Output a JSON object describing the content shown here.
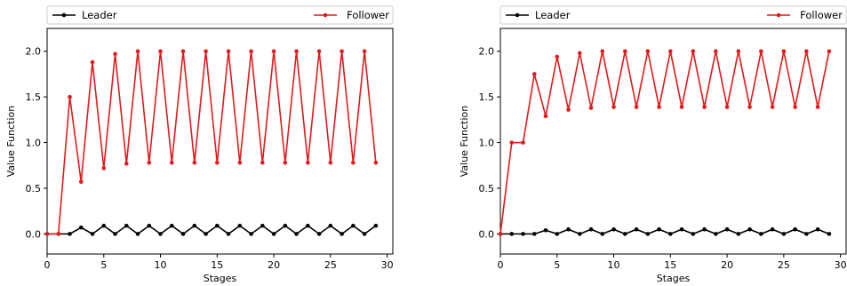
{
  "chart_data": [
    {
      "type": "line",
      "xlabel": "Stages",
      "ylabel": "Value Function",
      "xlim": [
        0,
        30.5
      ],
      "ylim": [
        -0.22,
        2.25
      ],
      "xticks": [
        0,
        5,
        10,
        15,
        20,
        25,
        30
      ],
      "yticks": [
        0.0,
        0.5,
        1.0,
        1.5,
        2.0
      ],
      "legend": "top, spanning (Leader left, Follower right)",
      "series": [
        {
          "name": "Leader",
          "color": "#000000",
          "x": [
            0,
            1,
            2,
            3,
            4,
            5,
            6,
            7,
            8,
            9,
            10,
            11,
            12,
            13,
            14,
            15,
            16,
            17,
            18,
            19,
            20,
            21,
            22,
            23,
            24,
            25,
            26,
            27,
            28,
            29
          ],
          "y": [
            0,
            0,
            0,
            0.07,
            0,
            0.09,
            0,
            0.09,
            0,
            0.09,
            0,
            0.09,
            0,
            0.09,
            0,
            0.09,
            0,
            0.09,
            0,
            0.09,
            0,
            0.09,
            0,
            0.09,
            0,
            0.09,
            0,
            0.09,
            0,
            0.09
          ]
        },
        {
          "name": "Follower",
          "color": "#e31a1c",
          "x": [
            0,
            1,
            2,
            3,
            4,
            5,
            6,
            7,
            8,
            9,
            10,
            11,
            12,
            13,
            14,
            15,
            16,
            17,
            18,
            19,
            20,
            21,
            22,
            23,
            24,
            25,
            26,
            27,
            28,
            29
          ],
          "y": [
            0,
            0,
            1.5,
            0.57,
            1.88,
            0.72,
            1.97,
            0.77,
            2.0,
            0.78,
            2.0,
            0.78,
            2.0,
            0.78,
            2.0,
            0.78,
            2.0,
            0.78,
            2.0,
            0.78,
            2.0,
            0.78,
            2.0,
            0.78,
            2.0,
            0.78,
            2.0,
            0.78,
            2.0,
            0.78
          ]
        }
      ]
    },
    {
      "type": "line",
      "xlabel": "Stages",
      "ylabel": "Value Function",
      "xlim": [
        0,
        30.5
      ],
      "ylim": [
        -0.22,
        2.25
      ],
      "xticks": [
        0,
        5,
        10,
        15,
        20,
        25,
        30
      ],
      "yticks": [
        0.0,
        0.5,
        1.0,
        1.5,
        2.0
      ],
      "legend": "top, spanning (Leader left, Follower right)",
      "series": [
        {
          "name": "Leader",
          "color": "#000000",
          "x": [
            0,
            1,
            2,
            3,
            4,
            5,
            6,
            7,
            8,
            9,
            10,
            11,
            12,
            13,
            14,
            15,
            16,
            17,
            18,
            19,
            20,
            21,
            22,
            23,
            24,
            25,
            26,
            27,
            28,
            29
          ],
          "y": [
            0,
            0,
            0,
            0,
            0.04,
            0,
            0.05,
            0,
            0.05,
            0,
            0.05,
            0,
            0.05,
            0,
            0.05,
            0,
            0.05,
            0,
            0.05,
            0,
            0.05,
            0,
            0.05,
            0,
            0.05,
            0,
            0.05,
            0,
            0.05,
            0
          ]
        },
        {
          "name": "Follower",
          "color": "#e31a1c",
          "x": [
            0,
            1,
            2,
            3,
            4,
            5,
            6,
            7,
            8,
            9,
            10,
            11,
            12,
            13,
            14,
            15,
            16,
            17,
            18,
            19,
            20,
            21,
            22,
            23,
            24,
            25,
            26,
            27,
            28,
            29
          ],
          "y": [
            0,
            1.0,
            1.0,
            1.75,
            1.29,
            1.94,
            1.36,
            1.98,
            1.38,
            2.0,
            1.39,
            2.0,
            1.39,
            2.0,
            1.39,
            2.0,
            1.39,
            2.0,
            1.39,
            2.0,
            1.39,
            2.0,
            1.39,
            2.0,
            1.39,
            2.0,
            1.39,
            2.0,
            1.39,
            2.0
          ]
        }
      ]
    }
  ]
}
